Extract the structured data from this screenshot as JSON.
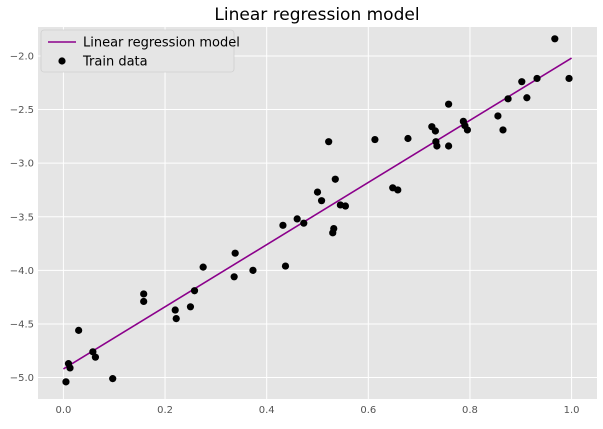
{
  "chart_data": {
    "type": "scatter",
    "title": "Linear regression model",
    "xlabel": "",
    "ylabel": "",
    "xlim": [
      -0.05,
      1.05
    ],
    "ylim": [
      -5.2,
      -1.73
    ],
    "grid": true,
    "legend_position": "top-left",
    "x_ticks": [
      0.0,
      0.2,
      0.4,
      0.6,
      0.8,
      1.0
    ],
    "x_tick_labels": [
      "0.0",
      "0.2",
      "0.4",
      "0.6",
      "0.8",
      "1.0"
    ],
    "y_ticks": [
      -5.0,
      -4.5,
      -4.0,
      -3.5,
      -3.0,
      -2.5,
      -2.0
    ],
    "y_tick_labels": [
      "−5.0",
      "−4.5",
      "−4.0",
      "−3.5",
      "−3.0",
      "−2.5",
      "−2.0"
    ],
    "colors": {
      "plot_background": "#e5e5e5",
      "grid": "#ffffff",
      "line": "#8b008b",
      "points": "#000000"
    },
    "line_series": {
      "name": "Linear regression model",
      "x": [
        0.0,
        1.0
      ],
      "y": [
        -4.92,
        -2.02
      ]
    },
    "scatter_series": {
      "name": "Train data",
      "points": [
        [
          0.005,
          -5.04
        ],
        [
          0.01,
          -4.87
        ],
        [
          0.013,
          -4.91
        ],
        [
          0.03,
          -4.56
        ],
        [
          0.058,
          -4.76
        ],
        [
          0.063,
          -4.81
        ],
        [
          0.097,
          -5.01
        ],
        [
          0.158,
          -4.22
        ],
        [
          0.158,
          -4.29
        ],
        [
          0.22,
          -4.37
        ],
        [
          0.222,
          -4.45
        ],
        [
          0.25,
          -4.34
        ],
        [
          0.258,
          -4.19
        ],
        [
          0.275,
          -3.97
        ],
        [
          0.336,
          -4.06
        ],
        [
          0.338,
          -3.84
        ],
        [
          0.373,
          -4.0
        ],
        [
          0.432,
          -3.58
        ],
        [
          0.437,
          -3.96
        ],
        [
          0.46,
          -3.52
        ],
        [
          0.473,
          -3.56
        ],
        [
          0.5,
          -3.27
        ],
        [
          0.508,
          -3.35
        ],
        [
          0.522,
          -2.8
        ],
        [
          0.53,
          -3.65
        ],
        [
          0.532,
          -3.61
        ],
        [
          0.535,
          -3.15
        ],
        [
          0.545,
          -3.39
        ],
        [
          0.555,
          -3.4
        ],
        [
          0.613,
          -2.78
        ],
        [
          0.648,
          -3.23
        ],
        [
          0.658,
          -3.25
        ],
        [
          0.678,
          -2.77
        ],
        [
          0.725,
          -2.66
        ],
        [
          0.732,
          -2.7
        ],
        [
          0.733,
          -2.8
        ],
        [
          0.735,
          -2.84
        ],
        [
          0.758,
          -2.45
        ],
        [
          0.758,
          -2.84
        ],
        [
          0.787,
          -2.61
        ],
        [
          0.79,
          -2.65
        ],
        [
          0.795,
          -2.69
        ],
        [
          0.855,
          -2.56
        ],
        [
          0.865,
          -2.69
        ],
        [
          0.875,
          -2.4
        ],
        [
          0.902,
          -2.24
        ],
        [
          0.912,
          -2.39
        ],
        [
          0.932,
          -2.21
        ],
        [
          0.967,
          -1.84
        ],
        [
          0.995,
          -2.21
        ]
      ]
    }
  },
  "legend": {
    "line_label": "Linear regression model",
    "points_label": "Train data"
  }
}
